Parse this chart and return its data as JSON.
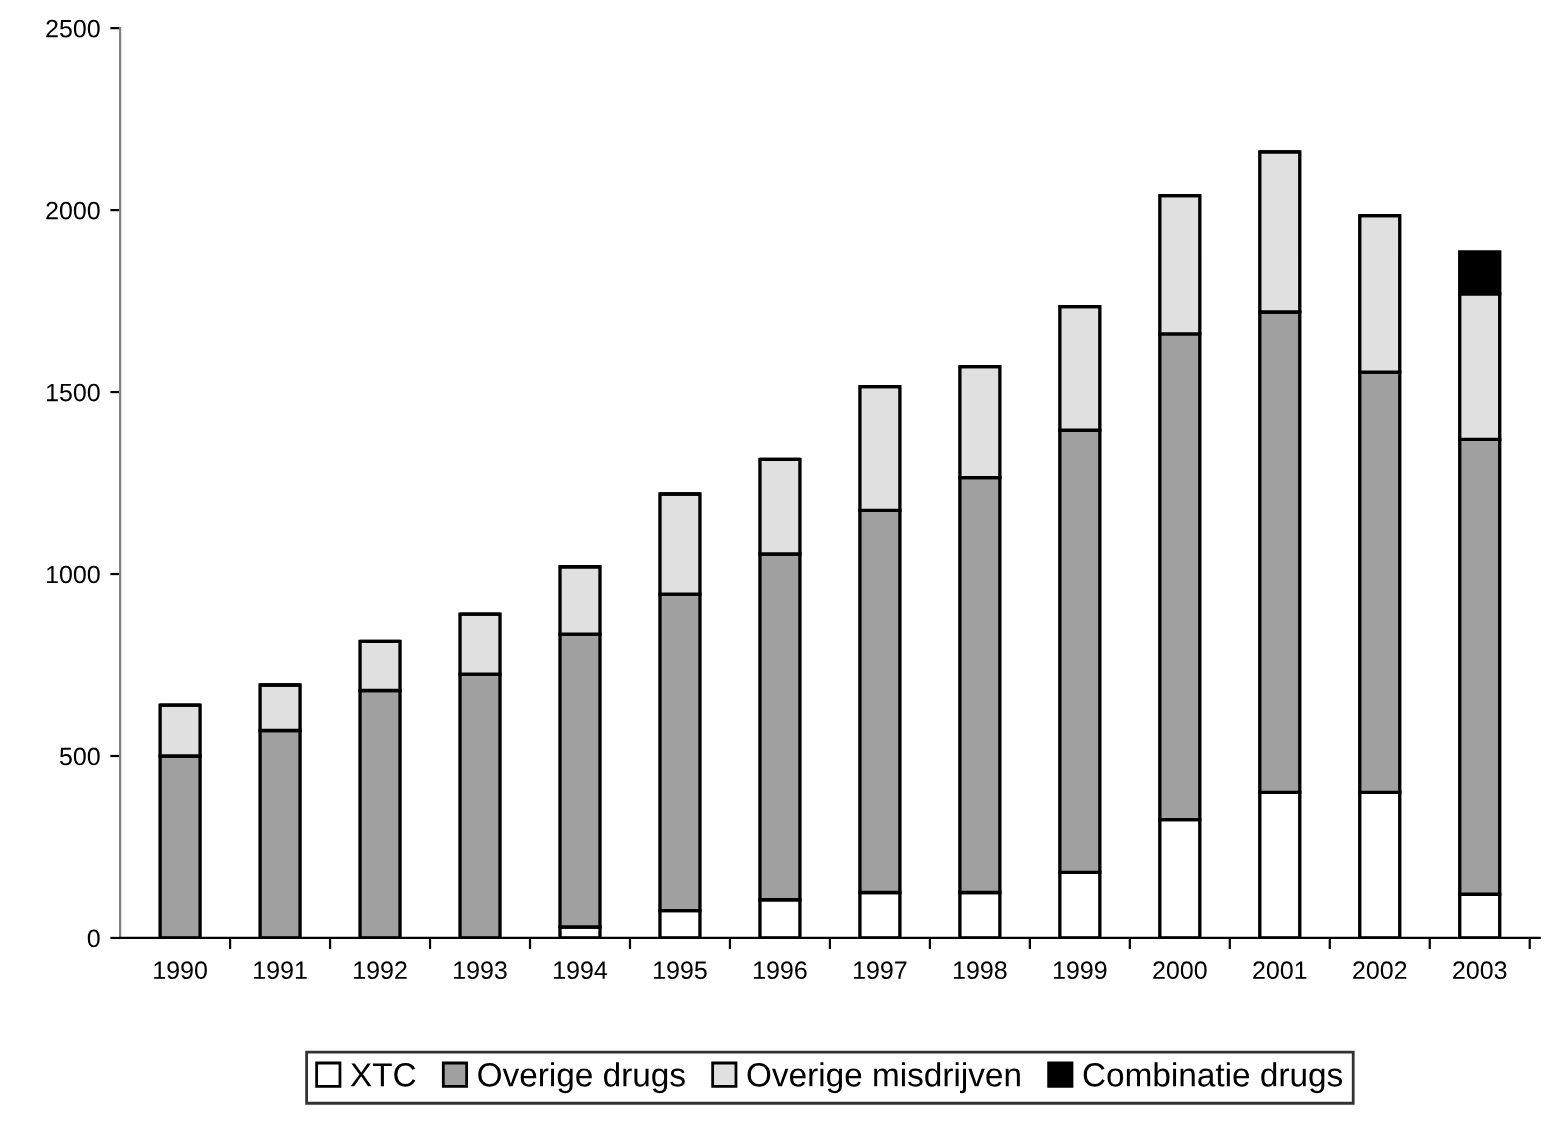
{
  "chart_data": {
    "type": "bar",
    "stacked": true,
    "categories": [
      "1990",
      "1991",
      "1992",
      "1993",
      "1994",
      "1995",
      "1996",
      "1997",
      "1998",
      "1999",
      "2000",
      "2001",
      "2002",
      "2003"
    ],
    "series": [
      {
        "name": "XTC",
        "color": "#ffffff",
        "values": [
          null,
          null,
          null,
          null,
          30,
          75,
          105,
          125,
          125,
          180,
          325,
          400,
          400,
          120
        ]
      },
      {
        "name": "Overige drugs",
        "color": "#a0a0a0",
        "values": [
          500,
          570,
          680,
          725,
          805,
          870,
          950,
          1050,
          1140,
          1215,
          1335,
          1320,
          1155,
          1250
        ]
      },
      {
        "name": "Overige misdrijven",
        "color": "#e0e0e0",
        "values": [
          140,
          125,
          135,
          165,
          185,
          275,
          260,
          340,
          305,
          340,
          380,
          440,
          430,
          400
        ]
      },
      {
        "name": "Combinatie drugs",
        "color": "#000000",
        "values": [
          0,
          0,
          0,
          0,
          0,
          0,
          0,
          0,
          0,
          0,
          0,
          0,
          0,
          115
        ]
      }
    ],
    "ylim": [
      0,
      2500
    ],
    "yticks": [
      0,
      500,
      1000,
      1500,
      2000,
      2500
    ],
    "grid": false,
    "legend": "bottom"
  }
}
